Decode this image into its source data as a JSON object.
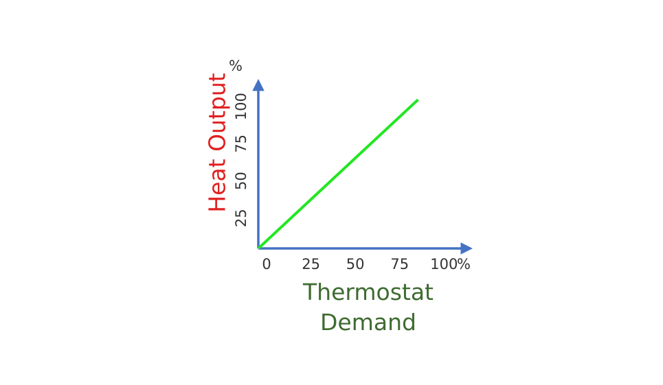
{
  "chart_data": {
    "type": "line",
    "xlabel": "Thermostat Demand",
    "ylabel": "Heat Output",
    "x_unit": "%",
    "y_unit": "%",
    "x": [
      0,
      90
    ],
    "series": [
      {
        "color": "#22e622",
        "values": [
          0,
          100
        ]
      }
    ],
    "xlim": [
      0,
      120
    ],
    "ylim": [
      0,
      113
    ],
    "xticks": [
      0,
      25,
      50,
      75,
      100
    ],
    "yticks": [
      25,
      50,
      75,
      100
    ],
    "axis_color": "#4472c4",
    "ylabel_color": "#e02020"
  }
}
